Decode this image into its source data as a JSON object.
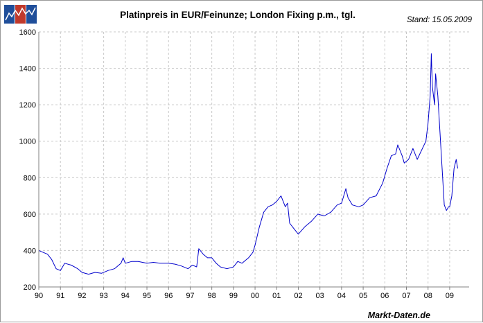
{
  "logo": {
    "name": "markt-daten-logo",
    "panel_colors": [
      "#1f4e9a",
      "#c0392b",
      "#1f4e9a"
    ],
    "line_color": "#ffffff"
  },
  "chart_data": {
    "type": "line",
    "title": "Platinpreis in EUR/Feinunze; London Fixing p.m., tgl.",
    "stand": "Stand: 15.05.2009",
    "source": "Markt-Daten.de",
    "xlabel": "",
    "ylabel": "",
    "xlim": [
      1990.0,
      2009.9
    ],
    "ylim": [
      200,
      1600
    ],
    "x_ticks": [
      1990,
      1991,
      1992,
      1993,
      1994,
      1995,
      1996,
      1997,
      1998,
      1999,
      2000,
      2001,
      2002,
      2003,
      2004,
      2005,
      2006,
      2007,
      2008,
      2009
    ],
    "x_tick_labels": [
      "90",
      "91",
      "92",
      "93",
      "94",
      "95",
      "96",
      "97",
      "98",
      "99",
      "00",
      "01",
      "02",
      "03",
      "04",
      "05",
      "06",
      "07",
      "08",
      "09"
    ],
    "y_ticks": [
      200,
      400,
      600,
      800,
      1000,
      1200,
      1400,
      1600
    ],
    "y_tick_labels": [
      "200",
      "400",
      "600",
      "800",
      "1000",
      "1200",
      "1400",
      "1600"
    ],
    "grid": true,
    "legend": "none",
    "series": [
      {
        "color": "#0000cc",
        "x": [
          1990.0,
          1990.2,
          1990.4,
          1990.6,
          1990.8,
          1991.0,
          1991.2,
          1991.5,
          1991.8,
          1992.0,
          1992.3,
          1992.6,
          1992.9,
          1993.2,
          1993.5,
          1993.8,
          1993.9,
          1994.0,
          1994.3,
          1994.6,
          1995.0,
          1995.3,
          1995.6,
          1996.0,
          1996.3,
          1996.6,
          1996.9,
          1997.1,
          1997.3,
          1997.4,
          1997.6,
          1997.8,
          1998.0,
          1998.2,
          1998.4,
          1998.7,
          1999.0,
          1999.2,
          1999.4,
          1999.7,
          1999.9,
          2000.0,
          2000.2,
          2000.4,
          2000.6,
          2000.8,
          2001.0,
          2001.2,
          2001.4,
          2001.5,
          2001.6,
          2001.8,
          2002.0,
          2002.3,
          2002.6,
          2002.9,
          2003.2,
          2003.5,
          2003.8,
          2004.0,
          2004.2,
          2004.3,
          2004.5,
          2004.8,
          2005.0,
          2005.3,
          2005.6,
          2005.9,
          2006.1,
          2006.3,
          2006.5,
          2006.6,
          2006.8,
          2006.9,
          2007.1,
          2007.3,
          2007.5,
          2007.7,
          2007.9,
          2008.0,
          2008.1,
          2008.15,
          2008.2,
          2008.3,
          2008.35,
          2008.45,
          2008.55,
          2008.65,
          2008.75,
          2008.85,
          2008.95,
          2009.0,
          2009.1,
          2009.2,
          2009.3,
          2009.37
        ],
        "y": [
          400,
          390,
          380,
          350,
          300,
          290,
          330,
          320,
          300,
          280,
          270,
          280,
          275,
          290,
          300,
          330,
          360,
          330,
          340,
          340,
          330,
          335,
          330,
          330,
          325,
          315,
          300,
          320,
          310,
          410,
          380,
          360,
          360,
          330,
          310,
          300,
          310,
          340,
          330,
          360,
          390,
          430,
          530,
          610,
          640,
          650,
          670,
          700,
          640,
          660,
          550,
          520,
          490,
          530,
          560,
          600,
          590,
          610,
          650,
          660,
          740,
          690,
          650,
          640,
          650,
          690,
          700,
          770,
          850,
          920,
          930,
          980,
          920,
          880,
          900,
          960,
          900,
          950,
          1000,
          1100,
          1250,
          1480,
          1300,
          1200,
          1370,
          1250,
          1050,
          850,
          650,
          620,
          640,
          640,
          700,
          850,
          900,
          850
        ]
      }
    ]
  }
}
